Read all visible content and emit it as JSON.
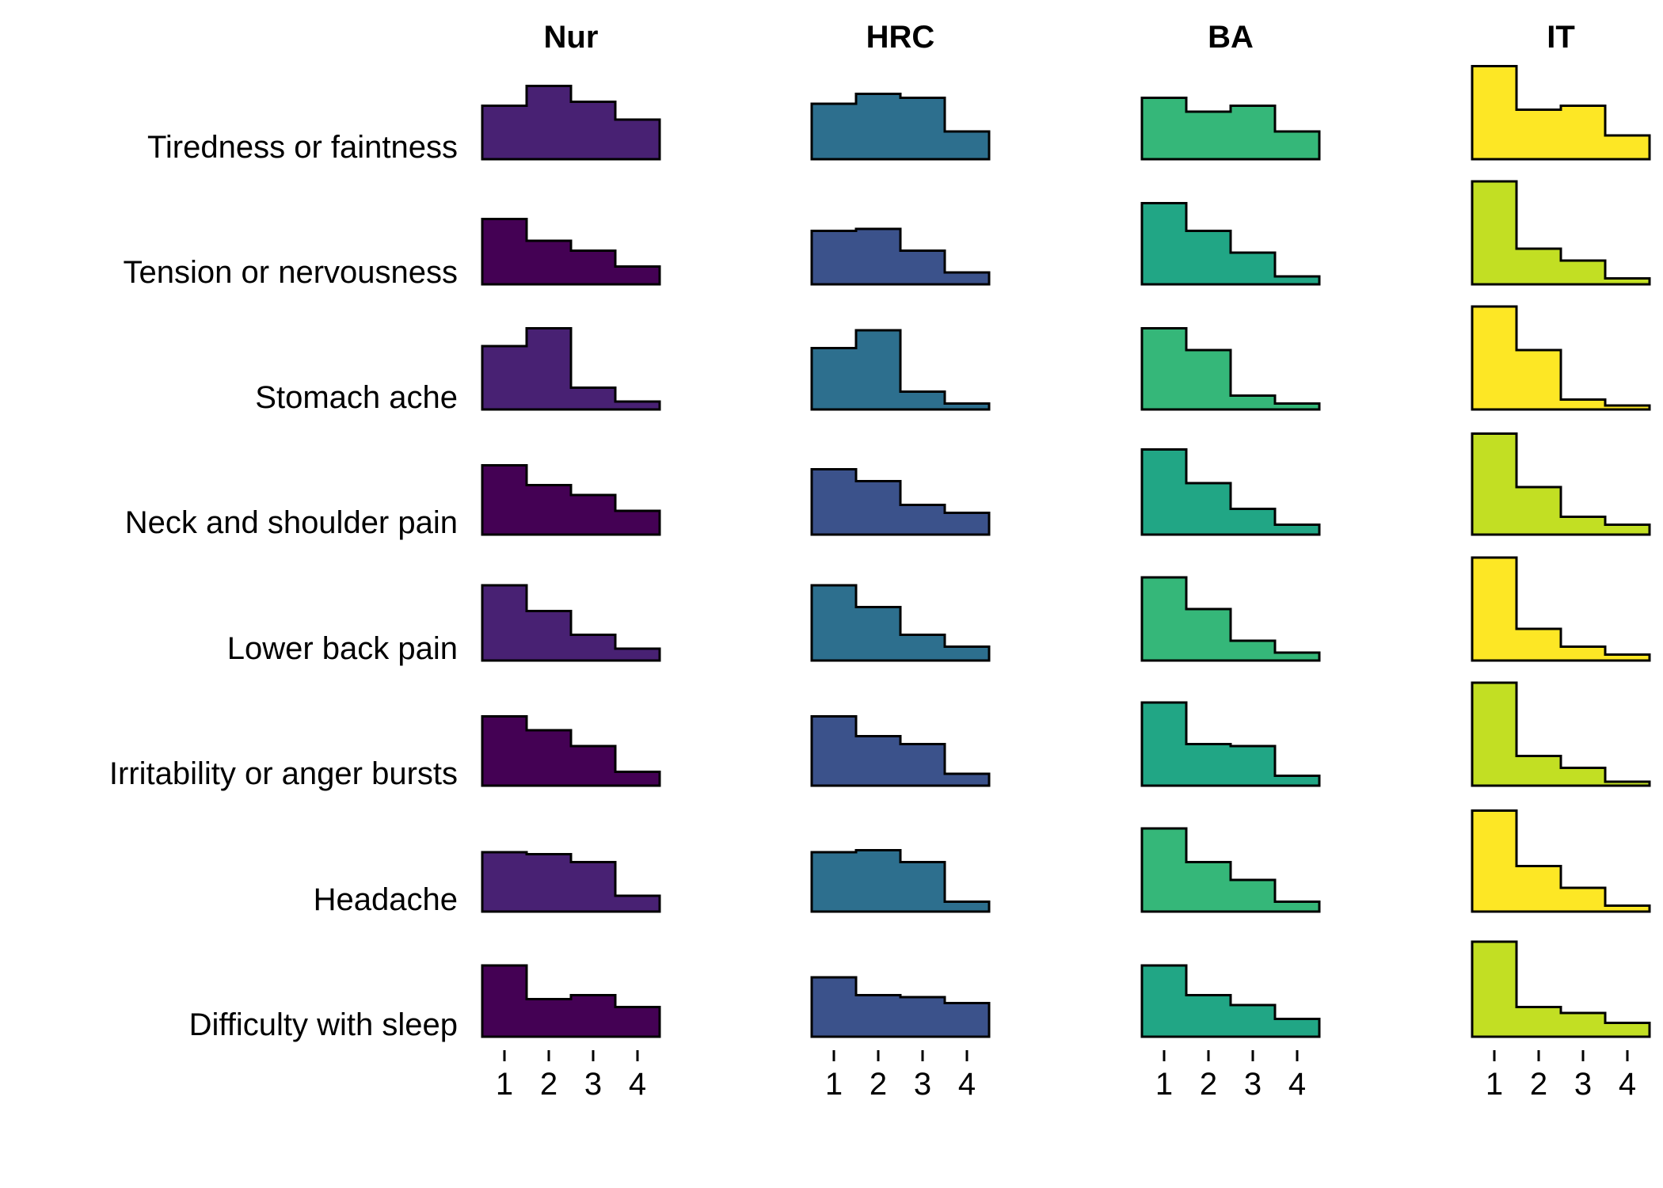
{
  "chart_data": {
    "type": "area",
    "style": "stepped ridgeline histogram grid (facets by group, rows by symptom)",
    "groups": [
      {
        "name": "Nur",
        "colors": [
          "#482173",
          "#440154"
        ]
      },
      {
        "name": "HRC",
        "colors": [
          "#2D6F8E",
          "#3B528B"
        ]
      },
      {
        "name": "BA",
        "colors": [
          "#35B779",
          "#21A685"
        ]
      },
      {
        "name": "IT",
        "colors": [
          "#FDE725",
          "#C2DF23"
        ]
      }
    ],
    "symptoms": [
      "Tiredness or faintness",
      "Tension or nervousness",
      "Stomach ache",
      "Neck and shoulder pain",
      "Lower back pain",
      "Irritability or anger bursts",
      "Headache",
      "Difficulty with sleep"
    ],
    "x_ticks": [
      "1",
      "2",
      "3",
      "4"
    ],
    "values": [
      [
        [
          0.27,
          0.37,
          0.29,
          0.2
        ],
        [
          0.28,
          0.33,
          0.31,
          0.14
        ],
        [
          0.31,
          0.24,
          0.27,
          0.14
        ],
        [
          0.47,
          0.25,
          0.27,
          0.12
        ]
      ],
      [
        [
          0.33,
          0.22,
          0.17,
          0.09
        ],
        [
          0.27,
          0.28,
          0.17,
          0.06
        ],
        [
          0.41,
          0.27,
          0.16,
          0.04
        ],
        [
          0.52,
          0.18,
          0.12,
          0.03
        ]
      ],
      [
        [
          0.32,
          0.41,
          0.11,
          0.04
        ],
        [
          0.31,
          0.4,
          0.09,
          0.03
        ],
        [
          0.41,
          0.3,
          0.07,
          0.03
        ],
        [
          0.52,
          0.3,
          0.05,
          0.02
        ]
      ],
      [
        [
          0.35,
          0.25,
          0.2,
          0.12
        ],
        [
          0.33,
          0.27,
          0.15,
          0.11
        ],
        [
          0.43,
          0.26,
          0.13,
          0.05
        ],
        [
          0.51,
          0.24,
          0.09,
          0.05
        ]
      ],
      [
        [
          0.38,
          0.25,
          0.13,
          0.06
        ],
        [
          0.38,
          0.27,
          0.13,
          0.07
        ],
        [
          0.42,
          0.26,
          0.1,
          0.04
        ],
        [
          0.52,
          0.16,
          0.07,
          0.03
        ]
      ],
      [
        [
          0.35,
          0.28,
          0.2,
          0.07
        ],
        [
          0.35,
          0.25,
          0.21,
          0.06
        ],
        [
          0.42,
          0.21,
          0.2,
          0.05
        ],
        [
          0.52,
          0.15,
          0.09,
          0.02
        ]
      ],
      [
        [
          0.3,
          0.29,
          0.25,
          0.08
        ],
        [
          0.3,
          0.31,
          0.25,
          0.05
        ],
        [
          0.42,
          0.25,
          0.16,
          0.05
        ],
        [
          0.51,
          0.23,
          0.12,
          0.03
        ]
      ],
      [
        [
          0.36,
          0.19,
          0.21,
          0.15
        ],
        [
          0.3,
          0.21,
          0.2,
          0.17
        ],
        [
          0.36,
          0.21,
          0.16,
          0.09
        ],
        [
          0.48,
          0.15,
          0.12,
          0.07
        ]
      ]
    ],
    "y_max": 0.52,
    "grid": false,
    "legend": "none"
  }
}
